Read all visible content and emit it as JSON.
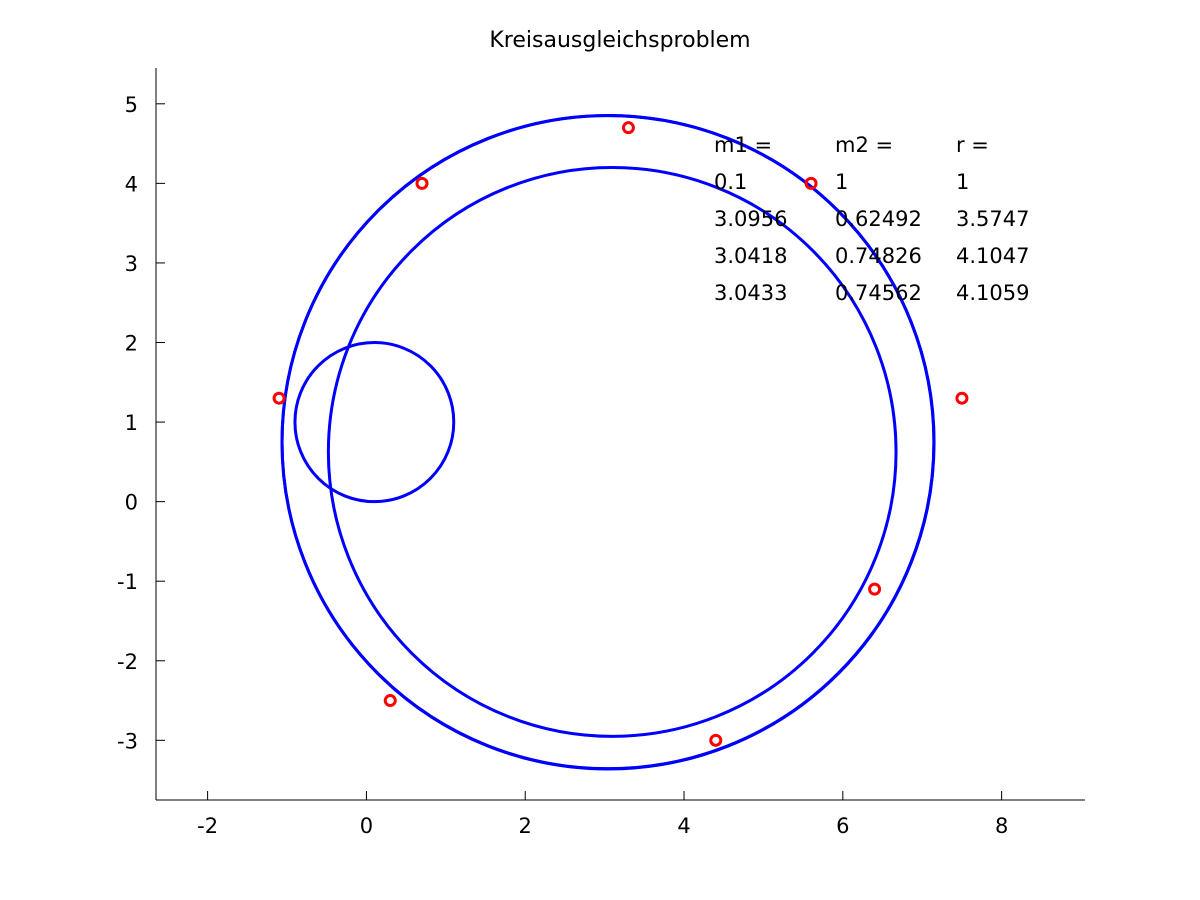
{
  "chart_data": {
    "type": "scatter",
    "title": "Kreisausgleichsproblem",
    "xlabel": "",
    "ylabel": "",
    "xlim": [
      -2.65,
      9.05
    ],
    "ylim": [
      -3.75,
      5.45
    ],
    "grid": false,
    "x_ticks": [
      -2,
      0,
      2,
      4,
      6,
      8
    ],
    "y_ticks": [
      -3,
      -2,
      -1,
      0,
      1,
      2,
      3,
      4,
      5
    ],
    "points": {
      "x": [
        -1.1,
        0.7,
        3.3,
        5.6,
        7.5,
        6.4,
        4.4,
        0.3
      ],
      "y": [
        1.3,
        4.0,
        4.7,
        4.0,
        1.3,
        -1.1,
        -3.0,
        -2.5
      ],
      "color": "#ff0000",
      "marker": "circle"
    },
    "circles": [
      {
        "m1": 0.1,
        "m2": 1,
        "r": 1,
        "color": "#0000ff"
      },
      {
        "m1": 3.0956,
        "m2": 0.62492,
        "r": 3.5747,
        "color": "#0000ff"
      },
      {
        "m1": 3.0418,
        "m2": 0.74826,
        "r": 4.1047,
        "color": "#0000ff"
      },
      {
        "m1": 3.0433,
        "m2": 0.74562,
        "r": 4.1059,
        "color": "#0000ff"
      }
    ],
    "annotation_table": {
      "headers": [
        "m1 =",
        "m2 =",
        "r ="
      ],
      "rows": [
        [
          "0.1",
          "1",
          "1"
        ],
        [
          "3.0956",
          "0.62492",
          "3.5747"
        ],
        [
          "3.0418",
          "0.74826",
          "4.1047"
        ],
        [
          "3.0433",
          "0.74562",
          "4.1059"
        ]
      ]
    }
  }
}
